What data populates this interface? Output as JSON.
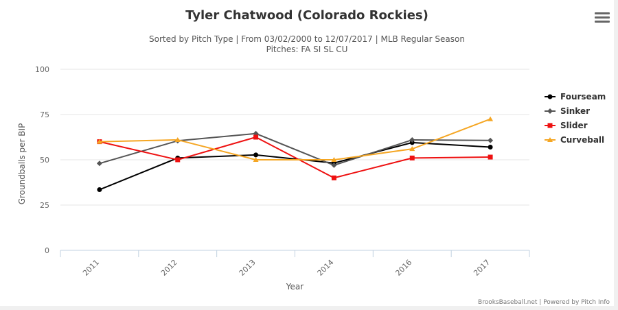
{
  "header": {
    "title": "Tyler Chatwood (Colorado Rockies)",
    "subtitle_line1": "Sorted by Pitch Type | From 03/02/2000 to 12/07/2017 | MLB Regular Season",
    "subtitle_line2": "Pitches: FA SI SL CU"
  },
  "menu": {
    "icon": "hamburger-menu-icon"
  },
  "credits": "BrooksBaseball.net | Powered by Pitch Info",
  "chart_data": {
    "type": "line",
    "title": "Tyler Chatwood (Colorado Rockies)",
    "xlabel": "Year",
    "ylabel": "Groundballs per BIP",
    "categories": [
      "2011",
      "2012",
      "2013",
      "2014",
      "2016",
      "2017"
    ],
    "ylim": [
      0,
      100
    ],
    "yticks": [
      0,
      25,
      50,
      75,
      100
    ],
    "grid": true,
    "legend_position": "right",
    "series": [
      {
        "name": "Fourseam",
        "color": "#000000",
        "marker": "circle",
        "values": [
          33.5,
          51,
          52.7,
          48.2,
          59.5,
          57
        ]
      },
      {
        "name": "Sinker",
        "color": "#555555",
        "marker": "diamond",
        "values": [
          48,
          60.5,
          64.5,
          47,
          61,
          60.7
        ]
      },
      {
        "name": "Slider",
        "color": "#ee1111",
        "marker": "square",
        "values": [
          60,
          50,
          62.5,
          40,
          51,
          51.5
        ]
      },
      {
        "name": "Curveball",
        "color": "#f5a623",
        "marker": "triangle",
        "values": [
          60,
          61,
          50,
          50,
          56,
          72.5
        ]
      }
    ]
  }
}
